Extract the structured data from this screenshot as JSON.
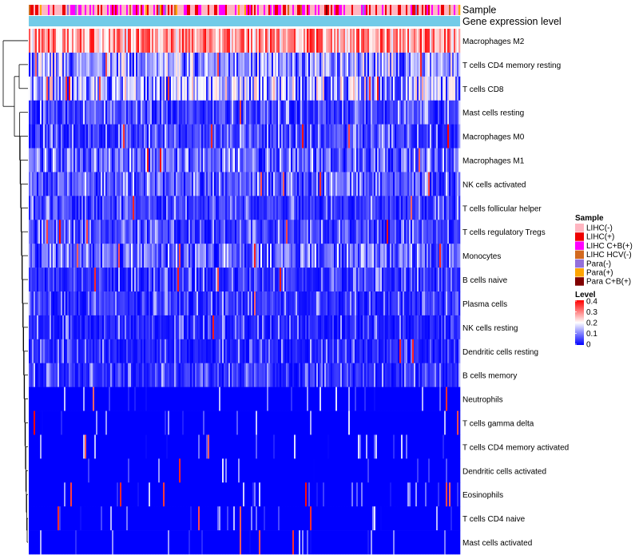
{
  "chart_data": {
    "type": "heatmap",
    "annotation_tracks": [
      "Sample",
      "Gene expression level"
    ],
    "rows": [
      "Macrophages M2",
      "T cells CD4 memory resting",
      "T cells CD8",
      "Mast cells resting",
      "Macrophages M0",
      "Macrophages M1",
      "NK cells activated",
      "T cells follicular helper",
      "T cells regulatory  Tregs",
      "Monocytes",
      "B cells naive",
      "Plasma cells",
      "NK cells resting",
      "Dendritic cells resting",
      "B cells memory",
      "Neutrophils",
      "T cells gamma delta",
      "T cells CD4 memory activated",
      "Dendritic cells activated",
      "Eosinophils",
      "T cells CD4 naive",
      "Mast cells activated"
    ],
    "row_typical_level": [
      0.28,
      0.12,
      0.15,
      0.06,
      0.05,
      0.08,
      0.07,
      0.05,
      0.05,
      0.09,
      0.04,
      0.04,
      0.03,
      0.03,
      0.04,
      0.02,
      0.01,
      0.01,
      0.01,
      0.005,
      0.005,
      0.005
    ],
    "legend_sample": {
      "title": "Sample",
      "items": [
        {
          "label": "LIHC(-)",
          "color": "#ffb6c1"
        },
        {
          "label": "LIHC(+)",
          "color": "#ee0000"
        },
        {
          "label": "LIHC C+B(+)",
          "color": "#ff00ff"
        },
        {
          "label": "LIHC HCV(-)",
          "color": "#d2691e"
        },
        {
          "label": "Para(-)",
          "color": "#9370db"
        },
        {
          "label": "Para(+)",
          "color": "#ffa500"
        },
        {
          "label": "Para C+B(+)",
          "color": "#800000"
        }
      ]
    },
    "legend_level": {
      "title": "Level",
      "ticks": [
        "0.4",
        "0.3",
        "0.2",
        "0.1",
        "0"
      ],
      "range": [
        0,
        0.4
      ],
      "colors": [
        "#0000ff",
        "#ffffff",
        "#ff0000"
      ]
    },
    "expression_track_color": "#72cbe8",
    "grid": false
  }
}
